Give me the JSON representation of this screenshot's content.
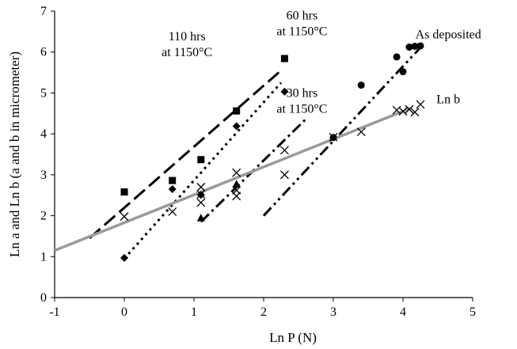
{
  "chart_data": {
    "type": "scatter",
    "title": "",
    "xlabel": "Ln P (N)",
    "ylabel": "Ln a and Ln b (a and b in micrometer)",
    "xlim": [
      -1,
      5
    ],
    "ylim": [
      0,
      7
    ],
    "xticks": [
      "-1",
      "0",
      "1",
      "2",
      "3",
      "4",
      "5"
    ],
    "yticks": [
      "0",
      "1",
      "2",
      "3",
      "4",
      "5",
      "6",
      "7"
    ],
    "grid": false,
    "legend": "none",
    "series": [
      {
        "marker": "square",
        "points": [
          [
            0,
            2.58
          ],
          [
            0.69,
            2.86
          ],
          [
            1.1,
            3.37
          ],
          [
            1.61,
            4.56
          ],
          [
            2.3,
            5.84
          ]
        ],
        "fit": {
          "x": [
            -0.5,
            2.25
          ],
          "y": [
            1.45,
            5.55
          ],
          "style": "long-dash",
          "color": "#000000"
        }
      },
      {
        "marker": "diamond",
        "points": [
          [
            0,
            0.97
          ],
          [
            0.69,
            2.65
          ],
          [
            1.1,
            2.51
          ],
          [
            1.61,
            4.19
          ],
          [
            2.3,
            5.03
          ]
        ],
        "fit": {
          "x": [
            0,
            2.25
          ],
          "y": [
            0.95,
            5.25
          ],
          "style": "dotted",
          "color": "#000000"
        }
      },
      {
        "marker": "triangle",
        "points": [
          [
            1.1,
            1.94
          ],
          [
            1.61,
            2.77
          ]
        ],
        "fit": {
          "x": [
            1.1,
            2.6
          ],
          "y": [
            1.85,
            4.35
          ],
          "style": "dash-dot",
          "color": "#000000"
        }
      },
      {
        "marker": "circle",
        "points": [
          [
            3.0,
            3.91
          ],
          [
            3.4,
            5.19
          ],
          [
            3.91,
            5.88
          ],
          [
            4.0,
            5.52
          ],
          [
            4.09,
            6.12
          ],
          [
            4.17,
            6.14
          ],
          [
            4.25,
            6.15
          ]
        ],
        "fit": {
          "x": [
            2.0,
            4.3
          ],
          "y": [
            2.0,
            6.2
          ],
          "style": "dash-dot-dot",
          "color": "#000000"
        }
      },
      {
        "marker": "cross",
        "points": [
          [
            0,
            1.98
          ],
          [
            0.69,
            2.1
          ],
          [
            1.1,
            2.32
          ],
          [
            1.1,
            2.52
          ],
          [
            1.1,
            2.7
          ],
          [
            1.61,
            2.48
          ],
          [
            1.61,
            2.62
          ],
          [
            1.61,
            3.05
          ],
          [
            2.3,
            3.0
          ],
          [
            2.3,
            3.6
          ],
          [
            3.0,
            3.92
          ],
          [
            3.4,
            4.05
          ],
          [
            3.91,
            4.58
          ],
          [
            4.0,
            4.55
          ],
          [
            4.09,
            4.6
          ],
          [
            4.17,
            4.53
          ],
          [
            4.25,
            4.72
          ]
        ],
        "fit": {
          "x": [
            -1,
            4.1
          ],
          "y": [
            1.15,
            4.62
          ],
          "style": "gray-line",
          "color": "#9a9a9a"
        }
      }
    ],
    "annotations": [
      {
        "lines": [
          "110 hrs",
          "at 1150°C"
        ],
        "x": 0.9,
        "y": 6.28
      },
      {
        "lines": [
          "60 hrs",
          "at 1150°C"
        ],
        "x": 2.55,
        "y": 6.8
      },
      {
        "lines": [
          "30 hrs",
          "at 1150°C"
        ],
        "x": 2.55,
        "y": 4.9
      },
      {
        "lines": [
          "As deposited"
        ],
        "x": 4.65,
        "y": 6.33
      },
      {
        "lines": [
          "Ln b"
        ],
        "x": 4.65,
        "y": 4.75
      }
    ]
  }
}
